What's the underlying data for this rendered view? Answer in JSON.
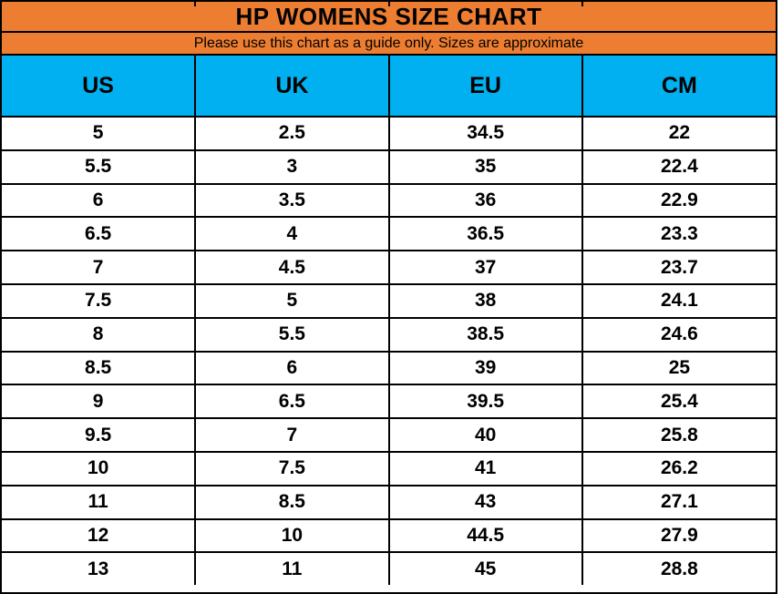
{
  "colors": {
    "title_bg": "#ED7D31",
    "header_bg": "#00B0F0",
    "grid": "#000000",
    "text": "#000000",
    "row_bg": "#FFFFFF"
  },
  "chart_data": {
    "type": "table",
    "title": "HP WOMENS SIZE CHART",
    "subtitle": "Please use this chart as a guide only. Sizes are approximate",
    "columns": [
      "US",
      "UK",
      "EU",
      "CM"
    ],
    "rows": [
      [
        "5",
        "2.5",
        "34.5",
        "22"
      ],
      [
        "5.5",
        "3",
        "35",
        "22.4"
      ],
      [
        "6",
        "3.5",
        "36",
        "22.9"
      ],
      [
        "6.5",
        "4",
        "36.5",
        "23.3"
      ],
      [
        "7",
        "4.5",
        "37",
        "23.7"
      ],
      [
        "7.5",
        "5",
        "38",
        "24.1"
      ],
      [
        "8",
        "5.5",
        "38.5",
        "24.6"
      ],
      [
        "8.5",
        "6",
        "39",
        "25"
      ],
      [
        "9",
        "6.5",
        "39.5",
        "25.4"
      ],
      [
        "9.5",
        "7",
        "40",
        "25.8"
      ],
      [
        "10",
        "7.5",
        "41",
        "26.2"
      ],
      [
        "11",
        "8.5",
        "43",
        "27.1"
      ],
      [
        "12",
        "10",
        "44.5",
        "27.9"
      ],
      [
        "13",
        "11",
        "45",
        "28.8"
      ]
    ]
  }
}
